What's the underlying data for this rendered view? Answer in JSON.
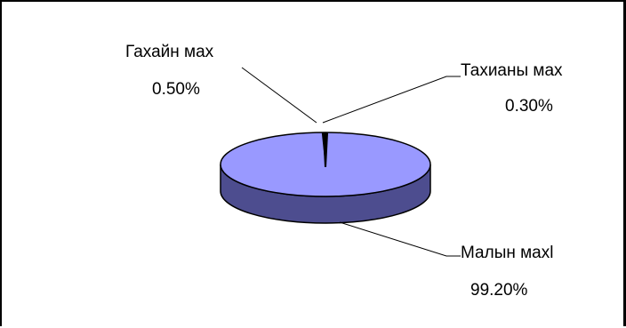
{
  "chart_data": {
    "type": "pie",
    "title": "",
    "three_d": true,
    "categories": [
      "Гахайн мах",
      "Тахианы мах",
      "Малын махl"
    ],
    "values": [
      0.5,
      0.3,
      99.2
    ],
    "value_labels": [
      "0.50%",
      "0.30%",
      "99.20%"
    ],
    "legend": "none",
    "colors": {
      "main_top": "#9999FF",
      "main_side": "#4D4D8F",
      "small_slice": "#000000",
      "outline": "#000000"
    }
  }
}
